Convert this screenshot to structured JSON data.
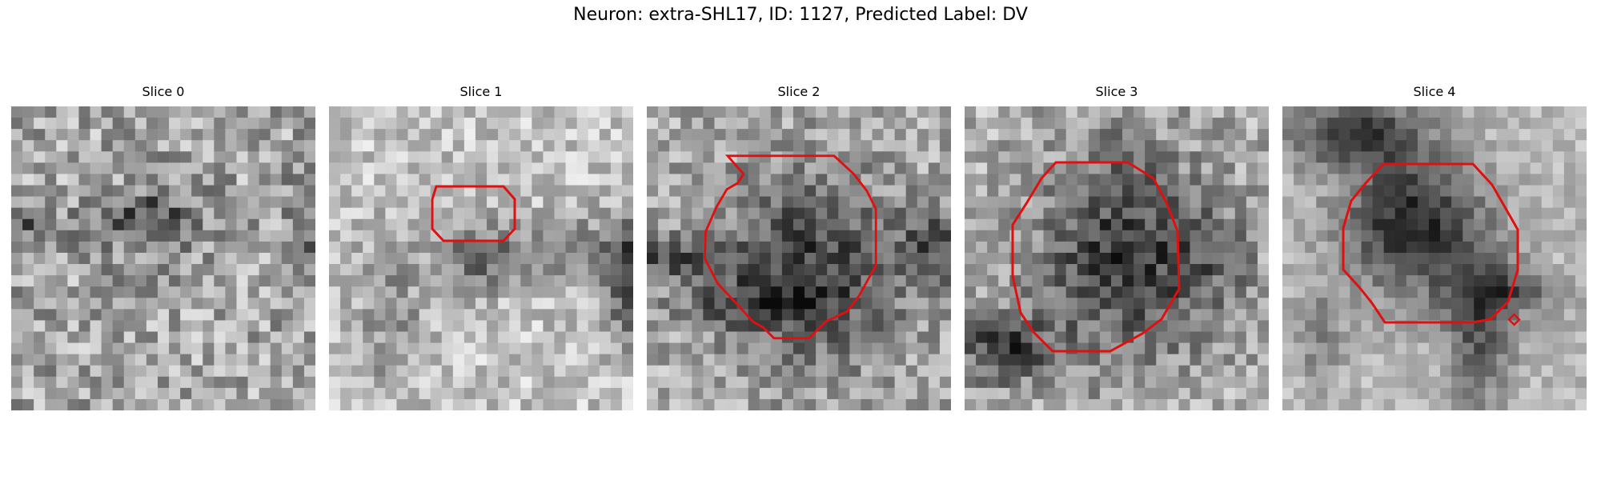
{
  "figure": {
    "title": "Neuron: extra-SHL17, ID: 1127, Predicted Label: DV",
    "contour_color": "#e01010"
  },
  "panels": [
    {
      "title": "Slice 0"
    },
    {
      "title": "Slice 1"
    },
    {
      "title": "Slice 2"
    },
    {
      "title": "Slice 3"
    },
    {
      "title": "Slice 4"
    }
  ]
}
